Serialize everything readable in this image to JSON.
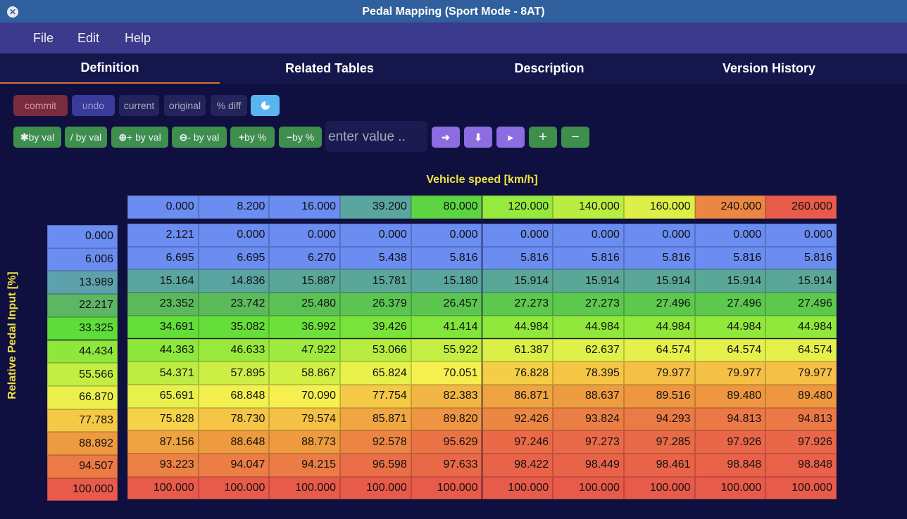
{
  "window": {
    "title": "Pedal Mapping (Sport Mode - 8AT)"
  },
  "menu": [
    "File",
    "Edit",
    "Help"
  ],
  "tabs": {
    "items": [
      "Definition",
      "Related Tables",
      "Description",
      "Version History"
    ],
    "active": 0
  },
  "toolbar_1": [
    "commit",
    "undo",
    "current",
    "original",
    "% diff"
  ],
  "toolbar_2": [
    "by val",
    "/ by val",
    "+ by val",
    "- by val",
    "by %",
    "by %"
  ],
  "input_placeholder": "enter value ..",
  "table": {
    "x_label": "Vehicle speed [km/h]",
    "y_label": "Relative Pedal Input [%]",
    "x_axis": [
      "0.000",
      "8.200",
      "16.000",
      "39.200",
      "80.000",
      "120.000",
      "140.000",
      "160.000",
      "240.000",
      "260.000"
    ],
    "y_axis": [
      "0.000",
      "6.006",
      "13.989",
      "22.217",
      "33.325",
      "44.434",
      "55.566",
      "66.870",
      "77.783",
      "88.892",
      "94.507",
      "100.000"
    ],
    "rows": [
      [
        "2.121",
        "0.000",
        "0.000",
        "0.000",
        "0.000",
        "0.000",
        "0.000",
        "0.000",
        "0.000",
        "0.000"
      ],
      [
        "6.695",
        "6.695",
        "6.270",
        "5.438",
        "5.816",
        "5.816",
        "5.816",
        "5.816",
        "5.816",
        "5.816"
      ],
      [
        "15.164",
        "14.836",
        "15.887",
        "15.781",
        "15.180",
        "15.914",
        "15.914",
        "15.914",
        "15.914",
        "15.914"
      ],
      [
        "23.352",
        "23.742",
        "25.480",
        "26.379",
        "26.457",
        "27.273",
        "27.273",
        "27.496",
        "27.496",
        "27.496"
      ],
      [
        "34.691",
        "35.082",
        "36.992",
        "39.426",
        "41.414",
        "44.984",
        "44.984",
        "44.984",
        "44.984",
        "44.984"
      ],
      [
        "44.363",
        "46.633",
        "47.922",
        "53.066",
        "55.922",
        "61.387",
        "62.637",
        "64.574",
        "64.574",
        "64.574"
      ],
      [
        "54.371",
        "57.895",
        "58.867",
        "65.824",
        "70.051",
        "76.828",
        "78.395",
        "79.977",
        "79.977",
        "79.977"
      ],
      [
        "65.691",
        "68.848",
        "70.090",
        "77.754",
        "82.383",
        "86.871",
        "88.637",
        "89.516",
        "89.480",
        "89.480"
      ],
      [
        "75.828",
        "78.730",
        "79.574",
        "85.871",
        "89.820",
        "92.426",
        "93.824",
        "94.293",
        "94.813",
        "94.813"
      ],
      [
        "87.156",
        "88.648",
        "88.773",
        "92.578",
        "95.629",
        "97.246",
        "97.273",
        "97.285",
        "97.926",
        "97.926"
      ],
      [
        "93.223",
        "94.047",
        "94.215",
        "96.598",
        "97.633",
        "98.422",
        "98.449",
        "98.461",
        "98.848",
        "98.848"
      ],
      [
        "100.000",
        "100.000",
        "100.000",
        "100.000",
        "100.000",
        "100.000",
        "100.000",
        "100.000",
        "100.000",
        "100.000"
      ]
    ]
  }
}
